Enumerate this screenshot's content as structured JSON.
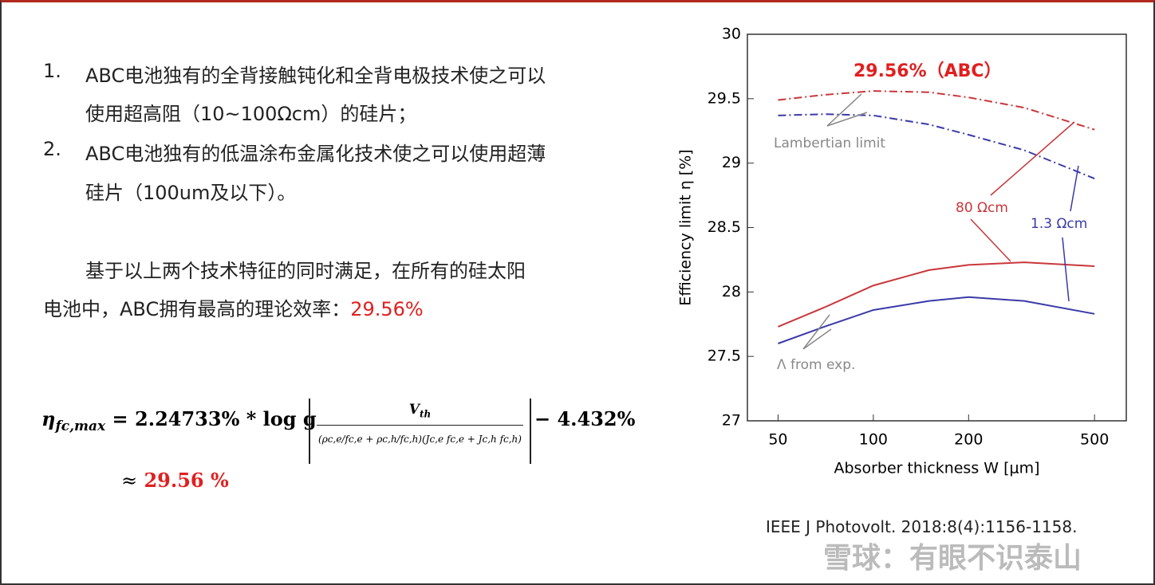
{
  "items": [
    {
      "marker": "1.",
      "lines": [
        "ABC电池独有的全背接触钝化和全背电极技术使之可以",
        "使用超高阻（10~100Ωcm）的硅片；"
      ]
    },
    {
      "marker": "2.",
      "lines": [
        "ABC电池独有的低温涂布金属化技术使之可以使用超薄",
        "硅片（100um及以下）。"
      ]
    }
  ],
  "paragraph": {
    "lines": [
      "基于以上两个技术特征的同时满足，在所有的硅太阳",
      "电池中，ABC拥有最高的理论效率："
    ],
    "highlight": "29.56%"
  },
  "formula": {
    "lhs": "η",
    "lhs_sub": "fc,max",
    "equals": "= 2.24733% * log g",
    "numerator": "V",
    "numerator_sub": "th",
    "denominator": "(ρc,e/fc,e + ρc,h/fc,h)(Jc,e fc,e + Jc,h fc,h)",
    "tail": "− 4.432%",
    "approx": "≈",
    "result": "29.56 %"
  },
  "citation": "IEEE J Photovolt. 2018:8(4):1156-1158.",
  "watermark": "雪球：有眼不识泰山",
  "chart_data": {
    "type": "line",
    "x_label": "Absorber thickness W [μm]",
    "y_label": "Efficiency limit η [%]",
    "x": [
      50,
      70,
      100,
      150,
      200,
      300,
      500
    ],
    "xlim": [
      40,
      630
    ],
    "xticks": [
      50,
      100,
      200,
      500
    ],
    "x_log": true,
    "ylim": [
      27,
      30
    ],
    "yticks": [
      27,
      27.5,
      28,
      28.5,
      29,
      29.5,
      30
    ],
    "series": [
      {
        "color": "#c8373b",
        "style": "dashdot",
        "values": [
          29.49,
          29.53,
          29.56,
          29.55,
          29.51,
          29.43,
          29.26
        ]
      },
      {
        "color": "#3a3aa8",
        "style": "dashdot",
        "values": [
          29.37,
          29.38,
          29.37,
          29.3,
          29.22,
          29.1,
          28.88
        ]
      },
      {
        "color": "#c8373b",
        "style": "solid",
        "values": [
          27.73,
          27.88,
          28.05,
          28.17,
          28.21,
          28.23,
          28.2
        ]
      },
      {
        "color": "#3a3aa8",
        "style": "solid",
        "values": [
          27.6,
          27.73,
          27.86,
          27.93,
          27.96,
          27.93,
          27.83
        ]
      }
    ],
    "annotations": [
      "29.56%（ABC）",
      "Lambertian limit",
      "80 Ωcm",
      "1.3 Ωcm",
      "Λ from exp."
    ]
  }
}
